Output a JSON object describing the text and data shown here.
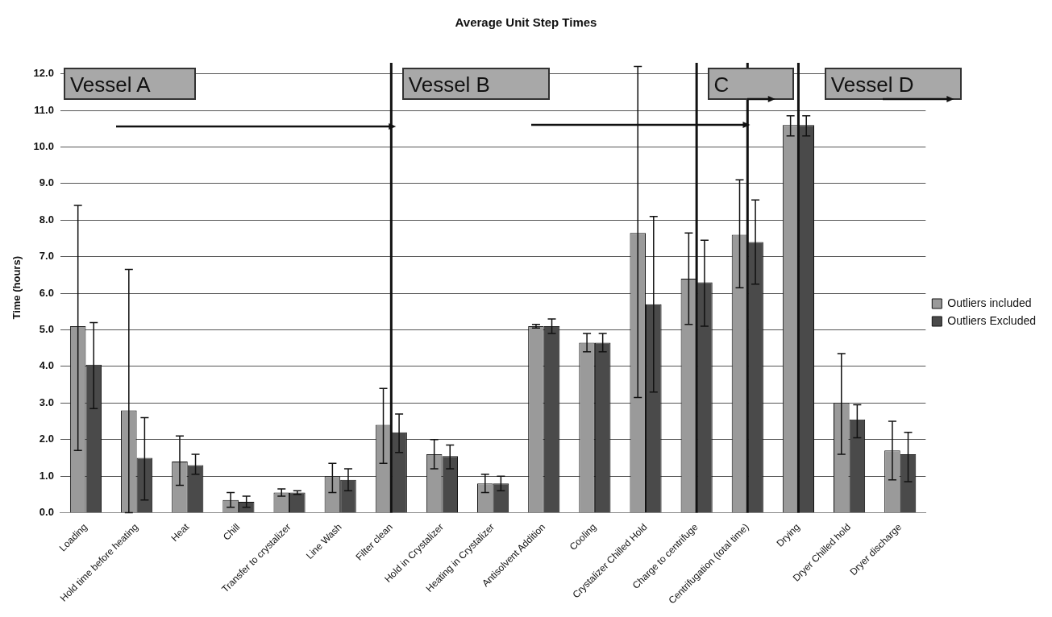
{
  "chart_data": {
    "type": "bar",
    "title": "Average Unit Step Times",
    "ylabel": "Time (hours)",
    "categories": [
      "Loading",
      "Hold time before heating",
      "Heat",
      "Chill",
      "Transfer to crystalizer",
      "Line Wash",
      "Filter clean",
      "Hold in Crystalizer",
      "Heating in Crystalizer",
      "Antisolvent Addition",
      "Cooling",
      "Crystalizer Chilled Hold",
      "Charge to centrifuge",
      "Centrifugation (total time)",
      "Drying",
      "Dryer Chilled hold",
      "Dryer discharge"
    ],
    "series": [
      {
        "name": "Outliers included",
        "color": "#9a9a9a",
        "values": [
          5.1,
          2.8,
          1.4,
          0.35,
          0.55,
          1.0,
          2.4,
          1.6,
          0.8,
          5.1,
          4.65,
          7.65,
          6.4,
          7.6,
          10.6,
          3.0,
          1.7
        ],
        "errors": [
          [
            1.7,
            8.4
          ],
          [
            0,
            6.65
          ],
          [
            0.75,
            2.1
          ],
          [
            0.15,
            0.55
          ],
          [
            0.45,
            0.65
          ],
          [
            0.55,
            1.35
          ],
          [
            1.35,
            3.4
          ],
          [
            1.2,
            2.0
          ],
          [
            0.55,
            1.05
          ],
          [
            5.05,
            5.15
          ],
          [
            4.4,
            4.9
          ],
          [
            3.15,
            12.2
          ],
          [
            5.15,
            7.65
          ],
          [
            6.15,
            9.1
          ],
          [
            10.3,
            10.85
          ],
          [
            1.6,
            4.35
          ],
          [
            0.9,
            2.5
          ]
        ]
      },
      {
        "name": "Outliers Excluded",
        "color": "#4a4a4a",
        "values": [
          4.05,
          1.5,
          1.3,
          0.3,
          0.55,
          0.9,
          2.2,
          1.55,
          0.8,
          5.1,
          4.65,
          5.7,
          6.3,
          7.4,
          10.6,
          2.55,
          1.6
        ],
        "errors": [
          [
            2.85,
            5.2
          ],
          [
            0.35,
            2.6
          ],
          [
            1.05,
            1.6
          ],
          [
            0.15,
            0.45
          ],
          [
            0.5,
            0.6
          ],
          [
            0.6,
            1.2
          ],
          [
            1.65,
            2.7
          ],
          [
            1.2,
            1.85
          ],
          [
            0.6,
            1.0
          ],
          [
            4.9,
            5.3
          ],
          [
            4.4,
            4.9
          ],
          [
            3.3,
            8.1
          ],
          [
            5.1,
            7.45
          ],
          [
            6.25,
            8.55
          ],
          [
            10.3,
            10.85
          ],
          [
            2.05,
            2.95
          ],
          [
            0.85,
            2.2
          ]
        ]
      }
    ],
    "ylim": [
      0,
      12.3
    ],
    "yticks": [
      {
        "value": 0,
        "label": "0.0"
      },
      {
        "value": 1,
        "label": "1.0"
      },
      {
        "value": 2,
        "label": "2.0"
      },
      {
        "value": 3,
        "label": "3.0"
      },
      {
        "value": 4,
        "label": "4.0"
      },
      {
        "value": 5,
        "label": "5.0"
      },
      {
        "value": 6,
        "label": "6.0"
      },
      {
        "value": 7,
        "label": "7.0"
      },
      {
        "value": 8,
        "label": "8.0"
      },
      {
        "value": 9,
        "label": "9.0"
      },
      {
        "value": 10,
        "label": "10.0"
      },
      {
        "value": 11,
        "label": "11.0"
      },
      {
        "value": 12,
        "label": "12.0"
      }
    ],
    "ref_lines": [
      {
        "axis": "x",
        "value": "Filter clean",
        "color": "#111111"
      },
      {
        "axis": "x",
        "value": "Charge to centrifuge",
        "color": "#111111"
      },
      {
        "axis": "x",
        "value": "Centrifugation (total time)",
        "color": "#111111"
      },
      {
        "axis": "x",
        "value": "Drying",
        "color": "#111111"
      }
    ],
    "annotations": [
      "Vessel A",
      "Vessel B",
      "C",
      "Vessel D"
    ],
    "grid": "y",
    "legend": "right"
  }
}
